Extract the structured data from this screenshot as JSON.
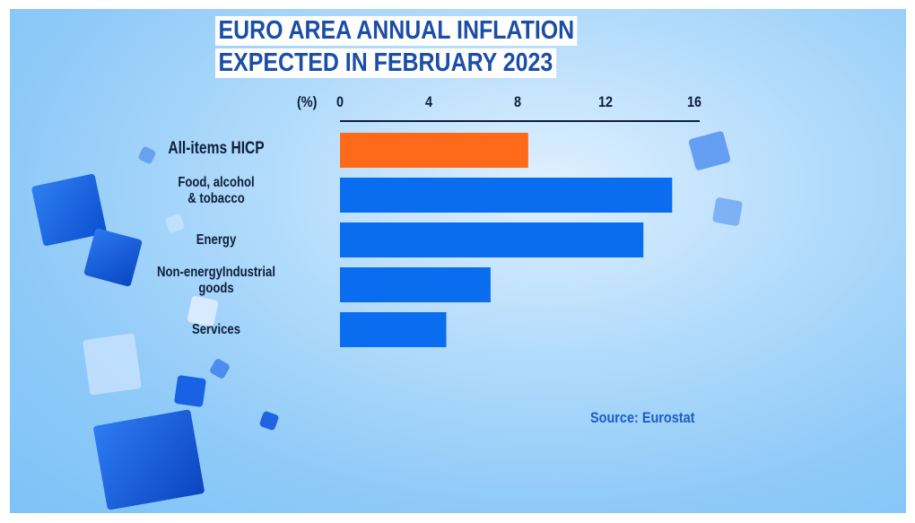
{
  "colors": {
    "highlight_bar": "#ff6a1a",
    "bar": "#0a6df0",
    "title_text": "#1a4ea7",
    "source_text": "#1c5cc7"
  },
  "title": {
    "line1": "EURO AREA ANNUAL INFLATION",
    "line2": "EXPECTED IN FEBRUARY 2023"
  },
  "source": "Source: Eurostat",
  "chart_data": {
    "type": "bar",
    "orientation": "horizontal",
    "title": "EURO AREA ANNUAL INFLATION EXPECTED IN FEBRUARY 2023",
    "unit_label": "(%)",
    "categories": [
      "All-items HICP",
      "Food, alcohol & tobacco",
      "Energy",
      "Non-energyIndustrial goods",
      "Services"
    ],
    "category_lines": [
      [
        "All-items HICP"
      ],
      [
        "Food, alcohol",
        "& tobacco"
      ],
      [
        "Energy"
      ],
      [
        "Non-energyIndustrial",
        "goods"
      ],
      [
        "Services"
      ]
    ],
    "values": [
      8.5,
      15.0,
      13.7,
      6.8,
      4.8
    ],
    "highlight_index": 0,
    "xlim": [
      0,
      16
    ],
    "xticks": [
      "0",
      "4",
      "8",
      "12",
      "16"
    ],
    "xtick_values": [
      0,
      4,
      8,
      12,
      16
    ],
    "grid": false,
    "source": "Source: Eurostat"
  }
}
